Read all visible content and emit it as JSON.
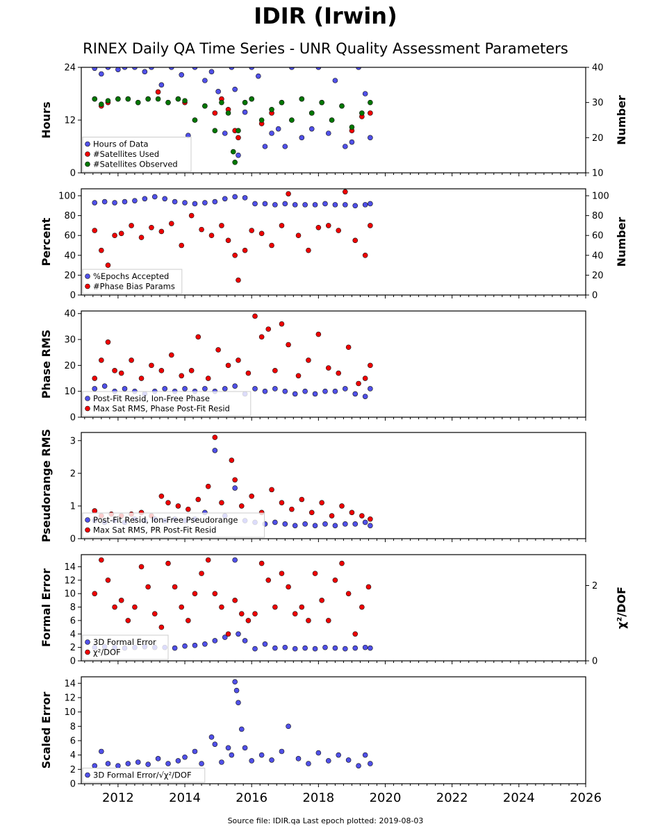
{
  "header": {
    "title": "IDIR (Irwin)",
    "subtitle": "RINEX Daily QA Time Series - UNR Quality Assessment Parameters"
  },
  "footer": {
    "source": "Source file: IDIR.qa Last epoch plotted: 2019-08-03"
  },
  "colors": {
    "blue": "#5050e8",
    "red": "#ee0000",
    "green": "#007700"
  },
  "chart_data": [
    {
      "type": "scatter",
      "ylabel": "Hours",
      "ylabel_right": "Number",
      "xlim": [
        2010.9,
        2026
      ],
      "ylim": [
        0,
        24
      ],
      "ylim_right": [
        10,
        40
      ],
      "yticks": [
        0,
        12,
        24
      ],
      "yticks_right": [
        10,
        20,
        30,
        40
      ],
      "legend_position": "lower-left",
      "series": [
        {
          "name": "Hours of Data",
          "color": "#5050e8",
          "axis": "left",
          "x": [
            2011.3,
            2011.5,
            2011.7,
            2012.0,
            2012.2,
            2012.5,
            2012.8,
            2013.0,
            2013.3,
            2013.6,
            2013.9,
            2014.1,
            2014.3,
            2014.6,
            2014.8,
            2015.0,
            2015.2,
            2015.4,
            2015.5,
            2015.6,
            2015.8,
            2016.0,
            2016.2,
            2016.4,
            2016.6,
            2016.8,
            2017.0,
            2017.2,
            2017.5,
            2017.8,
            2018.0,
            2018.3,
            2018.5,
            2018.8,
            2019.0,
            2019.2,
            2019.4,
            2019.55
          ],
          "y": [
            23.8,
            22.5,
            24,
            23.5,
            24,
            24,
            23,
            24,
            20,
            24,
            22.3,
            8.5,
            24,
            21,
            23,
            18.5,
            9,
            24,
            19,
            4,
            13.8,
            24,
            22,
            6,
            9,
            10,
            6,
            24,
            8,
            10,
            24,
            9,
            21,
            6,
            7,
            24,
            18,
            8
          ]
        },
        {
          "name": "#Satellites Used",
          "color": "#ee0000",
          "axis": "right",
          "x": [
            2011.3,
            2011.5,
            2011.7,
            2012.0,
            2012.3,
            2012.6,
            2012.9,
            2013.2,
            2013.5,
            2013.8,
            2014.0,
            2014.3,
            2014.6,
            2014.9,
            2015.1,
            2015.3,
            2015.5,
            2015.6,
            2015.8,
            2016.0,
            2016.3,
            2016.6,
            2016.9,
            2017.2,
            2017.5,
            2017.8,
            2018.1,
            2018.4,
            2018.7,
            2019.0,
            2019.3,
            2019.55
          ],
          "y": [
            31,
            29,
            30,
            31,
            31,
            30,
            31,
            33,
            30,
            31,
            30,
            25,
            29,
            27,
            31,
            28,
            22,
            20,
            30,
            31,
            24,
            27,
            30,
            25,
            31,
            27,
            30,
            25,
            29,
            22,
            26,
            27
          ]
        },
        {
          "name": "#Satellites Observed",
          "color": "#007700",
          "axis": "right",
          "x": [
            2011.3,
            2011.5,
            2011.7,
            2012.0,
            2012.3,
            2012.6,
            2012.9,
            2013.2,
            2013.5,
            2013.8,
            2014.0,
            2014.3,
            2014.6,
            2014.9,
            2015.1,
            2015.3,
            2015.45,
            2015.5,
            2015.6,
            2015.8,
            2016.0,
            2016.3,
            2016.6,
            2016.9,
            2017.2,
            2017.5,
            2017.8,
            2018.1,
            2018.4,
            2018.7,
            2019.0,
            2019.3,
            2019.55
          ],
          "y": [
            31,
            29.5,
            30.5,
            31,
            31,
            30,
            31,
            31,
            30,
            31,
            30.5,
            25,
            29,
            22,
            30,
            27,
            16,
            13,
            22,
            30,
            31,
            25,
            28,
            30,
            25,
            31,
            27,
            30,
            25,
            29,
            23,
            27,
            30
          ]
        }
      ]
    },
    {
      "type": "scatter",
      "ylabel": "Percent",
      "ylabel_right": "Number",
      "xlim": [
        2010.9,
        2026
      ],
      "ylim": [
        0,
        107
      ],
      "ylim_right": [
        0,
        107
      ],
      "yticks": [
        0,
        20,
        40,
        60,
        80,
        100
      ],
      "yticks_right": [
        0,
        20,
        40,
        60,
        80,
        100
      ],
      "legend_position": "lower-left",
      "series": [
        {
          "name": "%Epochs Accepted",
          "color": "#5050e8",
          "axis": "left",
          "x": [
            2011.3,
            2011.6,
            2011.9,
            2012.2,
            2012.5,
            2012.8,
            2013.1,
            2013.4,
            2013.7,
            2014.0,
            2014.3,
            2014.6,
            2014.9,
            2015.2,
            2015.5,
            2015.8,
            2016.1,
            2016.4,
            2016.7,
            2017.0,
            2017.3,
            2017.6,
            2017.9,
            2018.2,
            2018.5,
            2018.8,
            2019.1,
            2019.4,
            2019.55
          ],
          "y": [
            93,
            94,
            93,
            94,
            95,
            97,
            99,
            97,
            94,
            93,
            92,
            93,
            94,
            97,
            99,
            98,
            92,
            92,
            91,
            92,
            91,
            91,
            91,
            92,
            91,
            91,
            90,
            91,
            92
          ]
        },
        {
          "name": "#Phase Bias Params",
          "color": "#ee0000",
          "axis": "right",
          "x": [
            2011.3,
            2011.5,
            2011.7,
            2011.9,
            2012.1,
            2012.4,
            2012.7,
            2013.0,
            2013.3,
            2013.6,
            2013.9,
            2014.2,
            2014.5,
            2014.8,
            2015.1,
            2015.3,
            2015.5,
            2015.6,
            2015.8,
            2016.0,
            2016.3,
            2016.6,
            2016.9,
            2017.1,
            2017.4,
            2017.7,
            2018.0,
            2018.3,
            2018.6,
            2018.8,
            2019.1,
            2019.4,
            2019.55
          ],
          "y": [
            65,
            45,
            30,
            60,
            62,
            70,
            58,
            68,
            64,
            72,
            50,
            80,
            66,
            60,
            70,
            55,
            40,
            15,
            45,
            65,
            62,
            50,
            70,
            102,
            60,
            45,
            68,
            70,
            65,
            104,
            55,
            40,
            70
          ]
        }
      ]
    },
    {
      "type": "scatter",
      "ylabel": "Phase RMS",
      "xlim": [
        2010.9,
        2026
      ],
      "ylim": [
        0,
        41
      ],
      "yticks": [
        0,
        10,
        20,
        30,
        40
      ],
      "legend_position": "lower-left",
      "series": [
        {
          "name": "Post-Fit Resid, Ion-Free Phase",
          "color": "#5050e8",
          "x": [
            2011.3,
            2011.6,
            2011.9,
            2012.2,
            2012.5,
            2012.8,
            2013.1,
            2013.4,
            2013.7,
            2014.0,
            2014.3,
            2014.6,
            2014.9,
            2015.2,
            2015.5,
            2015.8,
            2016.1,
            2016.4,
            2016.7,
            2017.0,
            2017.3,
            2017.6,
            2017.9,
            2018.2,
            2018.5,
            2018.8,
            2019.1,
            2019.4,
            2019.55
          ],
          "y": [
            11,
            12,
            10,
            11,
            10,
            9,
            10,
            11,
            10,
            11,
            10,
            11,
            10,
            11,
            12,
            9,
            11,
            10,
            11,
            10,
            9,
            10,
            9,
            10,
            10,
            11,
            9,
            8,
            11
          ]
        },
        {
          "name": "Max Sat RMS, Phase Post-Fit Resid",
          "color": "#ee0000",
          "x": [
            2011.3,
            2011.5,
            2011.7,
            2011.9,
            2012.1,
            2012.4,
            2012.7,
            2013.0,
            2013.3,
            2013.6,
            2013.9,
            2014.2,
            2014.4,
            2014.7,
            2015.0,
            2015.3,
            2015.6,
            2015.9,
            2016.1,
            2016.3,
            2016.5,
            2016.7,
            2016.9,
            2017.1,
            2017.4,
            2017.7,
            2018.0,
            2018.3,
            2018.6,
            2018.9,
            2019.2,
            2019.4,
            2019.55
          ],
          "y": [
            15,
            22,
            29,
            18,
            17,
            22,
            15,
            20,
            18,
            24,
            16,
            18,
            31,
            15,
            26,
            20,
            22,
            17,
            39,
            31,
            34,
            18,
            36,
            28,
            16,
            22,
            32,
            19,
            17,
            27,
            13,
            15,
            20
          ]
        }
      ]
    },
    {
      "type": "scatter",
      "ylabel": "Pseudorange RMS",
      "xlim": [
        2010.9,
        2026
      ],
      "ylim": [
        0,
        3.25
      ],
      "yticks": [
        0,
        1,
        2,
        3
      ],
      "legend_position": "lower-left",
      "series": [
        {
          "name": "Post-Fit Resid, Ion-Free Pseudorange",
          "color": "#5050e8",
          "x": [
            2011.3,
            2011.6,
            2011.9,
            2012.2,
            2012.5,
            2012.8,
            2013.1,
            2013.4,
            2013.7,
            2014.0,
            2014.3,
            2014.6,
            2014.9,
            2015.2,
            2015.5,
            2015.8,
            2016.1,
            2016.4,
            2016.7,
            2017.0,
            2017.3,
            2017.6,
            2017.9,
            2018.2,
            2018.5,
            2018.8,
            2019.1,
            2019.4,
            2019.55
          ],
          "y": [
            0.55,
            0.5,
            0.55,
            0.5,
            0.6,
            0.55,
            0.6,
            0.55,
            0.6,
            0.55,
            0.6,
            0.8,
            2.7,
            0.7,
            1.55,
            0.55,
            0.5,
            0.45,
            0.5,
            0.45,
            0.4,
            0.45,
            0.4,
            0.45,
            0.4,
            0.45,
            0.45,
            0.5,
            0.4
          ]
        },
        {
          "name": "Max Sat RMS, PR Post-Fit Resid",
          "color": "#ee0000",
          "x": [
            2011.3,
            2011.5,
            2011.8,
            2012.1,
            2012.4,
            2012.7,
            2013.0,
            2013.3,
            2013.5,
            2013.8,
            2014.1,
            2014.4,
            2014.7,
            2014.9,
            2015.1,
            2015.4,
            2015.5,
            2015.7,
            2016.0,
            2016.3,
            2016.6,
            2016.9,
            2017.2,
            2017.5,
            2017.8,
            2018.1,
            2018.4,
            2018.7,
            2019.0,
            2019.3,
            2019.55
          ],
          "y": [
            0.85,
            0.7,
            0.75,
            0.7,
            0.75,
            0.8,
            0.7,
            1.3,
            1.1,
            1.0,
            0.9,
            1.2,
            1.6,
            3.1,
            1.1,
            2.4,
            1.8,
            1.0,
            1.3,
            0.8,
            1.5,
            1.1,
            0.9,
            1.2,
            0.8,
            1.1,
            0.7,
            1.0,
            0.8,
            0.7,
            0.6
          ]
        }
      ]
    },
    {
      "type": "scatter",
      "ylabel": "Formal Error",
      "ylabel_right": "χ²/DOF",
      "xlim": [
        2010.9,
        2026
      ],
      "ylim": [
        0,
        15.8
      ],
      "ylim_right": [
        0,
        2.82
      ],
      "yticks": [
        0,
        2,
        4,
        6,
        8,
        10,
        12,
        14
      ],
      "yticks_right": [
        0,
        2
      ],
      "legend_position": "lower-left",
      "series": [
        {
          "name": "3D Formal Error",
          "color": "#5050e8",
          "axis": "left",
          "x": [
            2011.3,
            2011.6,
            2011.9,
            2012.2,
            2012.5,
            2012.8,
            2013.1,
            2013.4,
            2013.7,
            2014.0,
            2014.3,
            2014.6,
            2014.9,
            2015.2,
            2015.5,
            2015.6,
            2015.8,
            2016.1,
            2016.4,
            2016.7,
            2017.0,
            2017.3,
            2017.6,
            2017.9,
            2018.2,
            2018.5,
            2018.8,
            2019.1,
            2019.4,
            2019.55
          ],
          "y": [
            2,
            2.1,
            2,
            1.9,
            2,
            2.1,
            2,
            2,
            1.9,
            2.2,
            2.3,
            2.5,
            3,
            3.5,
            15,
            4,
            3,
            1.8,
            2.5,
            1.9,
            2,
            1.8,
            1.9,
            1.8,
            2,
            1.9,
            1.8,
            1.9,
            2,
            1.9
          ]
        },
        {
          "name": "χ²/DOF",
          "color": "#ee0000",
          "axis": "left",
          "x": [
            2011.3,
            2011.5,
            2011.7,
            2011.9,
            2012.1,
            2012.3,
            2012.5,
            2012.7,
            2012.9,
            2013.1,
            2013.3,
            2013.5,
            2013.7,
            2013.9,
            2014.1,
            2014.3,
            2014.5,
            2014.7,
            2014.9,
            2015.1,
            2015.3,
            2015.5,
            2015.7,
            2015.9,
            2016.1,
            2016.3,
            2016.5,
            2016.7,
            2016.9,
            2017.1,
            2017.3,
            2017.5,
            2017.7,
            2017.9,
            2018.1,
            2018.3,
            2018.5,
            2018.7,
            2018.9,
            2019.1,
            2019.3,
            2019.5
          ],
          "y": [
            10,
            15,
            12,
            8,
            9,
            6,
            8,
            14,
            11,
            7,
            5,
            14.5,
            11,
            8,
            6,
            10,
            13,
            15,
            10,
            8,
            4,
            9,
            7,
            6,
            7,
            14.5,
            12,
            8,
            13,
            11,
            7,
            8,
            6,
            13,
            9,
            6,
            12,
            14.5,
            10,
            4,
            8,
            11
          ]
        }
      ]
    },
    {
      "type": "scatter",
      "ylabel": "Scaled Error",
      "xlim": [
        2010.9,
        2026
      ],
      "ylim": [
        0,
        14.9
      ],
      "yticks": [
        0,
        2,
        4,
        6,
        8,
        10,
        12,
        14
      ],
      "xticks": [
        2012,
        2014,
        2016,
        2018,
        2020,
        2022,
        2024,
        2026
      ],
      "legend_position": "lower-left",
      "series": [
        {
          "name": "3D Formal Error/√χ²/DOF",
          "color": "#5050e8",
          "x": [
            2011.3,
            2011.5,
            2011.7,
            2012.0,
            2012.3,
            2012.6,
            2012.9,
            2013.2,
            2013.5,
            2013.8,
            2014.0,
            2014.3,
            2014.5,
            2014.8,
            2014.9,
            2015.1,
            2015.3,
            2015.4,
            2015.5,
            2015.55,
            2015.6,
            2015.7,
            2015.8,
            2016.0,
            2016.3,
            2016.6,
            2016.9,
            2017.1,
            2017.4,
            2017.7,
            2018.0,
            2018.3,
            2018.6,
            2018.9,
            2019.2,
            2019.4,
            2019.55
          ],
          "y": [
            2.5,
            4.5,
            2.8,
            2.5,
            2.8,
            3,
            2.7,
            3.5,
            2.8,
            3.2,
            3.7,
            4.5,
            2.8,
            6.5,
            5.5,
            3,
            5,
            4,
            14.2,
            13,
            11.3,
            7.6,
            5,
            3.2,
            4,
            3.3,
            4.5,
            8,
            3.5,
            2.8,
            4.3,
            3.2,
            4,
            3.3,
            2.5,
            4,
            2.8
          ]
        }
      ]
    }
  ]
}
